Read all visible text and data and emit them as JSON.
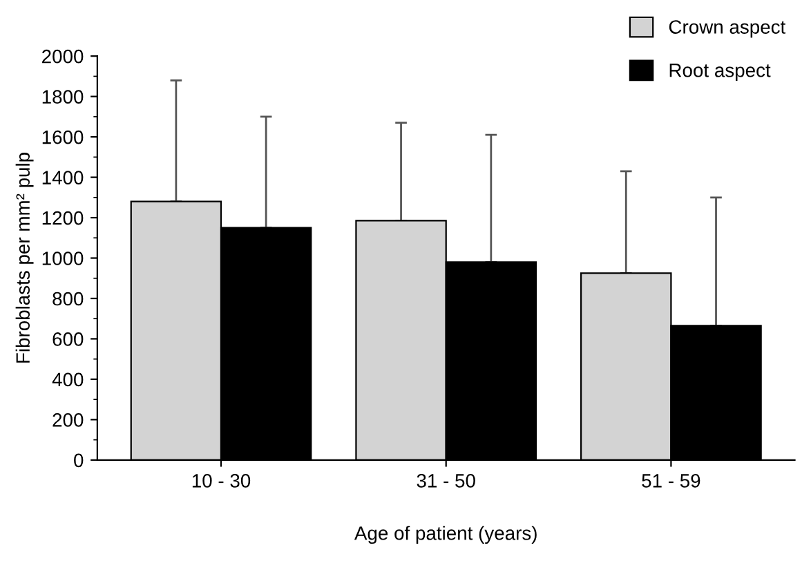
{
  "chart_data": {
    "type": "bar",
    "xlabel": "Age of patient (years)",
    "ylabel": "Fibroblasts per mm² pulp",
    "categories": [
      "10 - 30",
      "31 - 50",
      "51 - 59"
    ],
    "series": [
      {
        "name": "Crown aspect",
        "color": "#d3d3d3",
        "values": [
          1280,
          1185,
          925
        ],
        "errors": [
          [
            1280,
            1880
          ],
          [
            1185,
            1670
          ],
          [
            925,
            1430
          ]
        ]
      },
      {
        "name": "Root aspect",
        "color": "#000000",
        "values": [
          1150,
          980,
          665
        ],
        "errors": [
          [
            1150,
            1700
          ],
          [
            980,
            1610
          ],
          [
            665,
            1300
          ]
        ]
      }
    ],
    "ylim": [
      0,
      2000
    ],
    "yticks": [
      0,
      200,
      400,
      600,
      800,
      1000,
      1200,
      1400,
      1600,
      1800,
      2000
    ],
    "grid": false,
    "legend": "top right"
  }
}
